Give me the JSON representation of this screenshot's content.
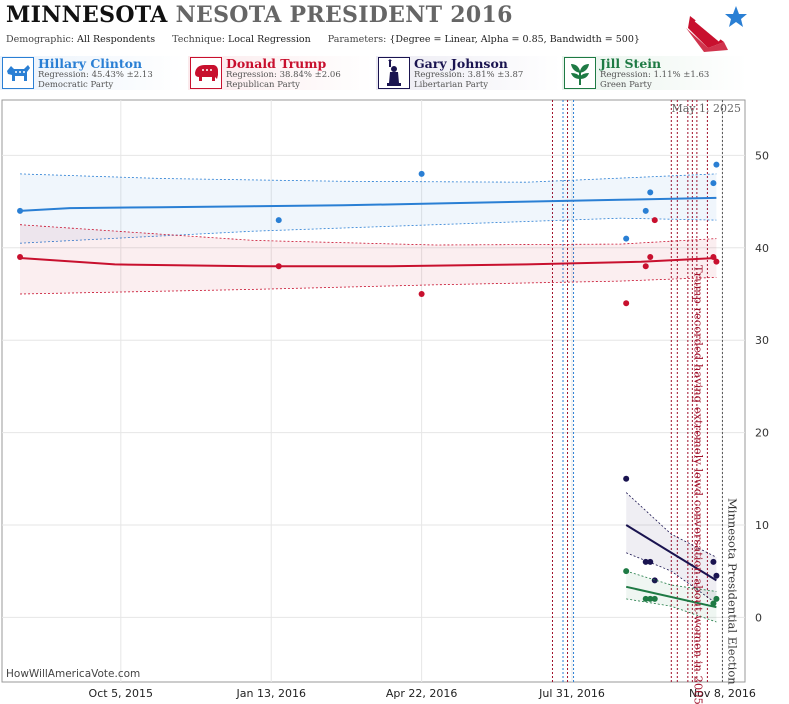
{
  "header": {
    "title_main": "MINNESOTA",
    "title_sub": "NESOTA PRESIDENT 2016",
    "demographic_label": "Demographic:",
    "demographic_value": "All Respondents",
    "technique_label": "Technique:",
    "technique_value": "Local Regression",
    "parameters_label": "Parameters:",
    "parameters_value": "{Degree = Linear, Alpha = 0.85, Bandwidth = 500}"
  },
  "candidates": [
    {
      "name": "Hillary Clinton",
      "regression": "Regression: 45.43% ±2.13",
      "party": "Democratic Party",
      "color": "#2a7fd4",
      "bg": "#eaf2fb",
      "icon": "donkey-icon"
    },
    {
      "name": "Donald Trump",
      "regression": "Regression: 38.84% ±2.06",
      "party": "Republican Party",
      "color": "#c8102e",
      "bg": "#fbeaec",
      "icon": "elephant-icon"
    },
    {
      "name": "Gary Johnson",
      "regression": "Regression: 3.81% ±3.87",
      "party": "Libertarian Party",
      "color": "#1a1450",
      "bg": "#ecebf3",
      "icon": "statue-of-liberty-icon"
    },
    {
      "name": "Jill Stein",
      "regression": "Regression: 1.11% ±1.63",
      "party": "Green Party",
      "color": "#1e7a44",
      "bg": "#e8f3ec",
      "icon": "leaf-icon"
    }
  ],
  "credit": "HowWillAmericaVote.com",
  "chart_data": {
    "type": "scatter",
    "date_stamp": "May 1, 2025",
    "x_ticks": [
      {
        "date": "2015-10-05",
        "label": "Oct 5, 2015"
      },
      {
        "date": "2016-01-13",
        "label": "Jan 13, 2016"
      },
      {
        "date": "2016-04-22",
        "label": "Apr 22, 2016"
      },
      {
        "date": "2016-07-31",
        "label": "Jul 31, 2016"
      },
      {
        "date": "2016-11-08",
        "label": "Nov 8, 2016"
      }
    ],
    "xlim": [
      "2015-07-18",
      "2016-11-23"
    ],
    "ylim": [
      -7,
      56
    ],
    "y_ticks": [
      0,
      10,
      20,
      30,
      40,
      50
    ],
    "grid": true,
    "series": [
      {
        "name": "Hillary Clinton",
        "color": "#2a7fd4",
        "points": [
          [
            "2015-07-30",
            44
          ],
          [
            "2016-01-18",
            43
          ],
          [
            "2016-04-22",
            48
          ],
          [
            "2016-09-05",
            41
          ],
          [
            "2016-09-18",
            44
          ],
          [
            "2016-09-21",
            46
          ],
          [
            "2016-11-02",
            47
          ],
          [
            "2016-11-04",
            49
          ]
        ],
        "trend": [
          [
            "2015-07-30",
            44
          ],
          [
            "2015-09-01",
            44.3
          ],
          [
            "2015-11-01",
            44.4
          ],
          [
            "2016-01-01",
            44.5
          ],
          [
            "2016-03-01",
            44.6
          ],
          [
            "2016-05-01",
            44.8
          ],
          [
            "2016-07-01",
            45.0
          ],
          [
            "2016-09-01",
            45.2
          ],
          [
            "2016-11-04",
            45.4
          ]
        ],
        "upper": [
          [
            "2015-07-30",
            48
          ],
          [
            "2015-11-01",
            47.5
          ],
          [
            "2016-03-01",
            47.2
          ],
          [
            "2016-07-01",
            47.1
          ],
          [
            "2016-11-04",
            48
          ]
        ],
        "lower": [
          [
            "2015-07-30",
            40.5
          ],
          [
            "2016-01-01",
            41.8
          ],
          [
            "2016-05-01",
            42.5
          ],
          [
            "2016-09-01",
            43.2
          ],
          [
            "2016-11-04",
            43
          ]
        ]
      },
      {
        "name": "Donald Trump",
        "color": "#c8102e",
        "points": [
          [
            "2015-07-30",
            39
          ],
          [
            "2016-01-18",
            38
          ],
          [
            "2016-04-22",
            35
          ],
          [
            "2016-09-05",
            34
          ],
          [
            "2016-09-18",
            38
          ],
          [
            "2016-09-21",
            39
          ],
          [
            "2016-09-24",
            43
          ],
          [
            "2016-11-02",
            39
          ],
          [
            "2016-11-04",
            38.5
          ]
        ],
        "trend": [
          [
            "2015-07-30",
            38.9
          ],
          [
            "2015-10-01",
            38.2
          ],
          [
            "2016-01-01",
            38
          ],
          [
            "2016-04-01",
            38
          ],
          [
            "2016-07-01",
            38.2
          ],
          [
            "2016-09-15",
            38.5
          ],
          [
            "2016-11-04",
            38.9
          ]
        ],
        "upper": [
          [
            "2015-07-30",
            42.5
          ],
          [
            "2016-01-01",
            40.8
          ],
          [
            "2016-05-01",
            40.3
          ],
          [
            "2016-09-01",
            40.4
          ],
          [
            "2016-11-04",
            41
          ]
        ],
        "lower": [
          [
            "2015-07-30",
            35
          ],
          [
            "2016-01-01",
            35.5
          ],
          [
            "2016-05-01",
            36
          ],
          [
            "2016-09-01",
            36.4
          ],
          [
            "2016-11-04",
            36.8
          ]
        ]
      },
      {
        "name": "Gary Johnson",
        "color": "#1a1450",
        "points": [
          [
            "2016-09-05",
            15
          ],
          [
            "2016-09-18",
            6
          ],
          [
            "2016-09-21",
            6
          ],
          [
            "2016-09-24",
            4
          ],
          [
            "2016-11-02",
            6
          ],
          [
            "2016-11-04",
            4.5
          ]
        ],
        "trend": [
          [
            "2016-09-05",
            10
          ],
          [
            "2016-11-04",
            4
          ]
        ],
        "upper": [
          [
            "2016-09-05",
            13.5
          ],
          [
            "2016-10-05",
            9
          ],
          [
            "2016-11-04",
            6.5
          ]
        ],
        "lower": [
          [
            "2016-09-05",
            7
          ],
          [
            "2016-10-05",
            5
          ],
          [
            "2016-11-04",
            1.5
          ]
        ]
      },
      {
        "name": "Jill Stein",
        "color": "#1e7a44",
        "points": [
          [
            "2016-09-05",
            5
          ],
          [
            "2016-09-18",
            2
          ],
          [
            "2016-09-21",
            2
          ],
          [
            "2016-09-24",
            2
          ],
          [
            "2016-11-02",
            1.5
          ],
          [
            "2016-11-04",
            2
          ]
        ],
        "trend": [
          [
            "2016-09-05",
            3.3
          ],
          [
            "2016-11-04",
            1.1
          ]
        ],
        "upper": [
          [
            "2016-09-05",
            5
          ],
          [
            "2016-10-05",
            3.5
          ],
          [
            "2016-11-04",
            2.8
          ]
        ],
        "lower": [
          [
            "2016-09-05",
            2
          ],
          [
            "2016-10-05",
            1.2
          ],
          [
            "2016-11-04",
            -0.5
          ]
        ]
      }
    ],
    "vlines": [
      {
        "date": "2016-07-18",
        "color": "#a0102a"
      },
      {
        "date": "2016-07-25",
        "color": "#2a7fd4"
      },
      {
        "date": "2016-07-28",
        "color": "#a0102a"
      },
      {
        "date": "2016-08-01",
        "color": "#2a7fd4"
      },
      {
        "date": "2016-10-05",
        "color": "#a0102a"
      },
      {
        "date": "2016-10-09",
        "color": "#a0102a"
      },
      {
        "date": "2016-10-16",
        "color": "#a0102a"
      },
      {
        "date": "2016-10-19",
        "color": "#a0102a"
      },
      {
        "date": "2016-10-22",
        "color": "#a0102a"
      },
      {
        "date": "2016-10-29",
        "color": "#a0102a"
      },
      {
        "date": "2016-11-08",
        "color": "#555555"
      }
    ],
    "annotations": [
      {
        "text": "Trump recorded having extremely lewd conversation about women in 2005",
        "date": "2016-10-23",
        "color": "#a0102a"
      },
      {
        "text": "Minnesota Presidential Election",
        "date": "2016-11-12",
        "color": "#333333"
      }
    ]
  }
}
